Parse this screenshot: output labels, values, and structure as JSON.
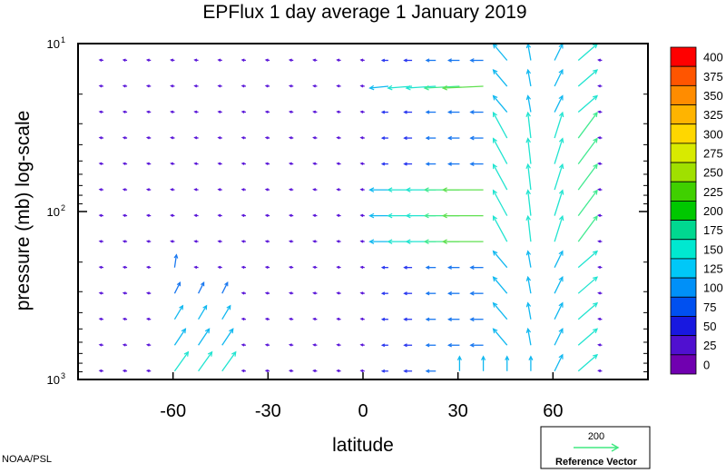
{
  "chart_data": {
    "type": "quiver",
    "title": "EPFlux  1 day average  1 January   2019",
    "xlabel": "latitude",
    "ylabel": "pressure (mb)  log-scale",
    "xlim": [
      -90,
      90
    ],
    "ylim": [
      1000,
      10
    ],
    "y_scale": "log",
    "x_ticks": [
      {
        "value": -60,
        "label": "-60"
      },
      {
        "value": -30,
        "label": "-30"
      },
      {
        "value": 0,
        "label": "0"
      },
      {
        "value": 30,
        "label": "30"
      },
      {
        "value": 60,
        "label": "60"
      }
    ],
    "y_ticks": [
      {
        "value": 10,
        "base": "10",
        "exp": "1"
      },
      {
        "value": 100,
        "base": "10",
        "exp": "2"
      },
      {
        "value": 1000,
        "base": "10",
        "exp": "3"
      }
    ],
    "colorbar": {
      "levels": [
        "400",
        "375",
        "350",
        "325",
        "300",
        "275",
        "250",
        "225",
        "200",
        "175",
        "150",
        "125",
        "100",
        "75",
        "50",
        "25",
        "0"
      ],
      "colors": [
        "#ff0000",
        "#ff5500",
        "#ff8c00",
        "#ffb400",
        "#ffd700",
        "#d8ea00",
        "#a0e000",
        "#40d000",
        "#00c800",
        "#00d890",
        "#00e8d0",
        "#00c8f8",
        "#0090f8",
        "#0050f0",
        "#1818e0",
        "#5010d0",
        "#7000b0"
      ]
    },
    "reference_vector": {
      "value": "200",
      "label": "Reference Vector",
      "color": "#40e880"
    },
    "credit": "NOAA/PSL"
  }
}
